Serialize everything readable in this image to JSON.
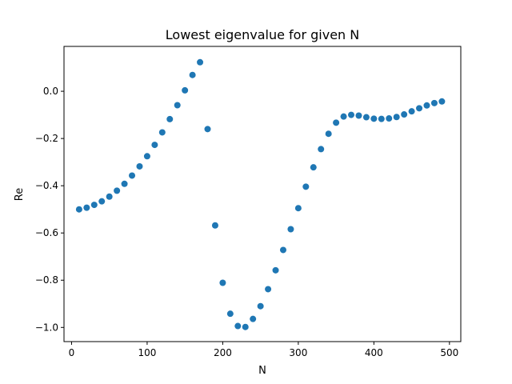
{
  "chart_data": {
    "type": "scatter",
    "title": "Lowest eigenvalue for given N",
    "xlabel": "N",
    "ylabel": "Re",
    "xlim": [
      -10,
      515
    ],
    "ylim": [
      -1.06,
      0.19
    ],
    "xticks": [
      0,
      100,
      200,
      300,
      400,
      500
    ],
    "xtick_labels": [
      "0",
      "100",
      "200",
      "300",
      "400",
      "500"
    ],
    "yticks": [
      0.0,
      -0.2,
      -0.4,
      -0.6,
      -0.8,
      -1.0
    ],
    "ytick_labels": [
      "0.0",
      "−0.2",
      "−0.4",
      "−0.6",
      "−0.8",
      "−1.0"
    ],
    "grid": false,
    "marker_color": "#1f77b4",
    "series": [
      {
        "x": [
          10,
          20,
          30,
          40,
          50,
          60,
          70,
          80,
          90,
          100,
          110,
          120,
          130,
          140,
          150,
          160,
          170,
          180,
          190,
          200,
          210,
          220,
          230,
          240,
          250,
          260,
          270,
          280,
          290,
          300,
          310,
          320,
          330,
          340,
          350,
          360,
          370,
          380,
          390,
          400,
          410,
          420,
          430,
          440,
          450,
          460,
          470,
          480,
          490
        ],
        "y": [
          -0.5,
          -0.493,
          -0.481,
          -0.466,
          -0.446,
          -0.421,
          -0.392,
          -0.357,
          -0.318,
          -0.275,
          -0.227,
          -0.174,
          -0.118,
          -0.059,
          0.004,
          0.069,
          0.123,
          -0.16,
          -0.568,
          -0.811,
          -0.942,
          -0.994,
          -0.998,
          -0.964,
          -0.91,
          -0.838,
          -0.758,
          -0.672,
          -0.584,
          -0.495,
          -0.404,
          -0.322,
          -0.245,
          -0.18,
          -0.133,
          -0.107,
          -0.1,
          -0.103,
          -0.11,
          -0.116,
          -0.117,
          -0.115,
          -0.109,
          -0.098,
          -0.085,
          -0.072,
          -0.06,
          -0.05,
          -0.043
        ]
      }
    ]
  }
}
